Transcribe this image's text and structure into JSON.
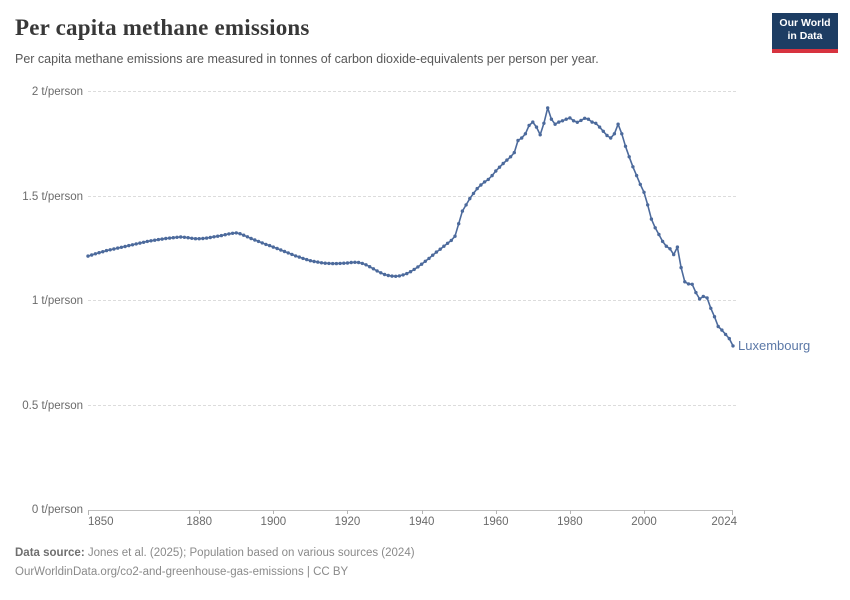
{
  "header": {
    "title": "Per capita methane emissions",
    "subtitle": "Per capita methane emissions are measured in tonnes of carbon dioxide-equivalents per person per year.",
    "logo": {
      "line1": "Our World",
      "line2": "in Data",
      "bg_color": "#1d3d63",
      "accent_color": "#d7333f"
    }
  },
  "chart_data": {
    "type": "line",
    "title": "Per capita methane emissions",
    "ylabel": "t/person",
    "xlabel": "",
    "x_range": [
      1850,
      2024
    ],
    "y_range": [
      0,
      2
    ],
    "grid": "horizontal-dashed",
    "legend_position": "end-of-line-label",
    "y_ticks": [
      {
        "value": 0,
        "label": "0 t/person"
      },
      {
        "value": 0.5,
        "label": "0.5 t/person"
      },
      {
        "value": 1,
        "label": "1 t/person"
      },
      {
        "value": 1.5,
        "label": "1.5 t/person"
      },
      {
        "value": 2,
        "label": "2 t/person"
      }
    ],
    "x_ticks": [
      1850,
      1880,
      1900,
      1920,
      1940,
      1960,
      1980,
      2000,
      2024
    ],
    "series": [
      {
        "name": "Luxembourg",
        "color": "#4c6a9c",
        "label_color": "#5b78a7",
        "points": [
          [
            1850,
            1.215
          ],
          [
            1851,
            1.22
          ],
          [
            1852,
            1.226
          ],
          [
            1853,
            1.231
          ],
          [
            1854,
            1.236
          ],
          [
            1855,
            1.241
          ],
          [
            1856,
            1.245
          ],
          [
            1857,
            1.249
          ],
          [
            1858,
            1.253
          ],
          [
            1859,
            1.257
          ],
          [
            1860,
            1.261
          ],
          [
            1861,
            1.265
          ],
          [
            1862,
            1.269
          ],
          [
            1863,
            1.273
          ],
          [
            1864,
            1.277
          ],
          [
            1865,
            1.281
          ],
          [
            1866,
            1.285
          ],
          [
            1867,
            1.288
          ],
          [
            1868,
            1.291
          ],
          [
            1869,
            1.294
          ],
          [
            1870,
            1.296
          ],
          [
            1871,
            1.299
          ],
          [
            1872,
            1.301
          ],
          [
            1873,
            1.303
          ],
          [
            1874,
            1.305
          ],
          [
            1875,
            1.306
          ],
          [
            1876,
            1.305
          ],
          [
            1877,
            1.303
          ],
          [
            1878,
            1.3
          ],
          [
            1879,
            1.298
          ],
          [
            1880,
            1.298
          ],
          [
            1881,
            1.299
          ],
          [
            1882,
            1.301
          ],
          [
            1883,
            1.304
          ],
          [
            1884,
            1.307
          ],
          [
            1885,
            1.31
          ],
          [
            1886,
            1.313
          ],
          [
            1887,
            1.317
          ],
          [
            1888,
            1.321
          ],
          [
            1889,
            1.324
          ],
          [
            1890,
            1.326
          ],
          [
            1891,
            1.322
          ],
          [
            1892,
            1.315
          ],
          [
            1893,
            1.307
          ],
          [
            1894,
            1.299
          ],
          [
            1895,
            1.292
          ],
          [
            1896,
            1.285
          ],
          [
            1897,
            1.278
          ],
          [
            1898,
            1.271
          ],
          [
            1899,
            1.265
          ],
          [
            1900,
            1.258
          ],
          [
            1901,
            1.251
          ],
          [
            1902,
            1.244
          ],
          [
            1903,
            1.237
          ],
          [
            1904,
            1.23
          ],
          [
            1905,
            1.223
          ],
          [
            1906,
            1.216
          ],
          [
            1907,
            1.21
          ],
          [
            1908,
            1.204
          ],
          [
            1909,
            1.198
          ],
          [
            1910,
            1.193
          ],
          [
            1911,
            1.189
          ],
          [
            1912,
            1.186
          ],
          [
            1913,
            1.183
          ],
          [
            1914,
            1.181
          ],
          [
            1915,
            1.18
          ],
          [
            1916,
            1.179
          ],
          [
            1917,
            1.179
          ],
          [
            1918,
            1.18
          ],
          [
            1919,
            1.181
          ],
          [
            1920,
            1.182
          ],
          [
            1921,
            1.184
          ],
          [
            1922,
            1.185
          ],
          [
            1923,
            1.184
          ],
          [
            1924,
            1.18
          ],
          [
            1925,
            1.173
          ],
          [
            1926,
            1.164
          ],
          [
            1927,
            1.154
          ],
          [
            1928,
            1.144
          ],
          [
            1929,
            1.135
          ],
          [
            1930,
            1.127
          ],
          [
            1931,
            1.122
          ],
          [
            1932,
            1.119
          ],
          [
            1933,
            1.118
          ],
          [
            1934,
            1.12
          ],
          [
            1935,
            1.125
          ],
          [
            1936,
            1.131
          ],
          [
            1937,
            1.14
          ],
          [
            1938,
            1.151
          ],
          [
            1939,
            1.163
          ],
          [
            1940,
            1.176
          ],
          [
            1941,
            1.19
          ],
          [
            1942,
            1.204
          ],
          [
            1943,
            1.219
          ],
          [
            1944,
            1.234
          ],
          [
            1945,
            1.248
          ],
          [
            1946,
            1.262
          ],
          [
            1947,
            1.276
          ],
          [
            1948,
            1.29
          ],
          [
            1949,
            1.31
          ],
          [
            1950,
            1.37
          ],
          [
            1951,
            1.43
          ],
          [
            1952,
            1.46
          ],
          [
            1953,
            1.49
          ],
          [
            1954,
            1.515
          ],
          [
            1955,
            1.538
          ],
          [
            1956,
            1.555
          ],
          [
            1957,
            1.57
          ],
          [
            1958,
            1.582
          ],
          [
            1959,
            1.6
          ],
          [
            1960,
            1.622
          ],
          [
            1961,
            1.64
          ],
          [
            1962,
            1.658
          ],
          [
            1963,
            1.674
          ],
          [
            1964,
            1.69
          ],
          [
            1965,
            1.71
          ],
          [
            1966,
            1.768
          ],
          [
            1967,
            1.78
          ],
          [
            1968,
            1.8
          ],
          [
            1969,
            1.84
          ],
          [
            1970,
            1.856
          ],
          [
            1971,
            1.832
          ],
          [
            1972,
            1.795
          ],
          [
            1973,
            1.85
          ],
          [
            1974,
            1.924
          ],
          [
            1975,
            1.87
          ],
          [
            1976,
            1.846
          ],
          [
            1977,
            1.856
          ],
          [
            1978,
            1.862
          ],
          [
            1979,
            1.87
          ],
          [
            1980,
            1.876
          ],
          [
            1981,
            1.862
          ],
          [
            1982,
            1.855
          ],
          [
            1983,
            1.864
          ],
          [
            1984,
            1.874
          ],
          [
            1985,
            1.87
          ],
          [
            1986,
            1.856
          ],
          [
            1987,
            1.85
          ],
          [
            1988,
            1.832
          ],
          [
            1989,
            1.812
          ],
          [
            1990,
            1.792
          ],
          [
            1991,
            1.78
          ],
          [
            1992,
            1.8
          ],
          [
            1993,
            1.846
          ],
          [
            1994,
            1.8
          ],
          [
            1995,
            1.74
          ],
          [
            1996,
            1.69
          ],
          [
            1997,
            1.642
          ],
          [
            1998,
            1.6
          ],
          [
            1999,
            1.558
          ],
          [
            2000,
            1.52
          ],
          [
            2001,
            1.46
          ],
          [
            2002,
            1.392
          ],
          [
            2003,
            1.35
          ],
          [
            2004,
            1.318
          ],
          [
            2005,
            1.285
          ],
          [
            2006,
            1.262
          ],
          [
            2007,
            1.25
          ],
          [
            2008,
            1.222
          ],
          [
            2009,
            1.258
          ],
          [
            2010,
            1.16
          ],
          [
            2011,
            1.092
          ],
          [
            2012,
            1.082
          ],
          [
            2013,
            1.08
          ],
          [
            2014,
            1.04
          ],
          [
            2015,
            1.01
          ],
          [
            2016,
            1.022
          ],
          [
            2017,
            1.015
          ],
          [
            2018,
            0.965
          ],
          [
            2019,
            0.925
          ],
          [
            2020,
            0.878
          ],
          [
            2021,
            0.861
          ],
          [
            2022,
            0.84
          ],
          [
            2023,
            0.82
          ],
          [
            2024,
            0.785
          ]
        ]
      }
    ]
  },
  "footer": {
    "datasource_label": "Data source:",
    "datasource_text": "Jones et al. (2025); Population based on various sources (2024)",
    "link_text": "OurWorldinData.org/co2-and-greenhouse-gas-emissions | CC BY"
  }
}
